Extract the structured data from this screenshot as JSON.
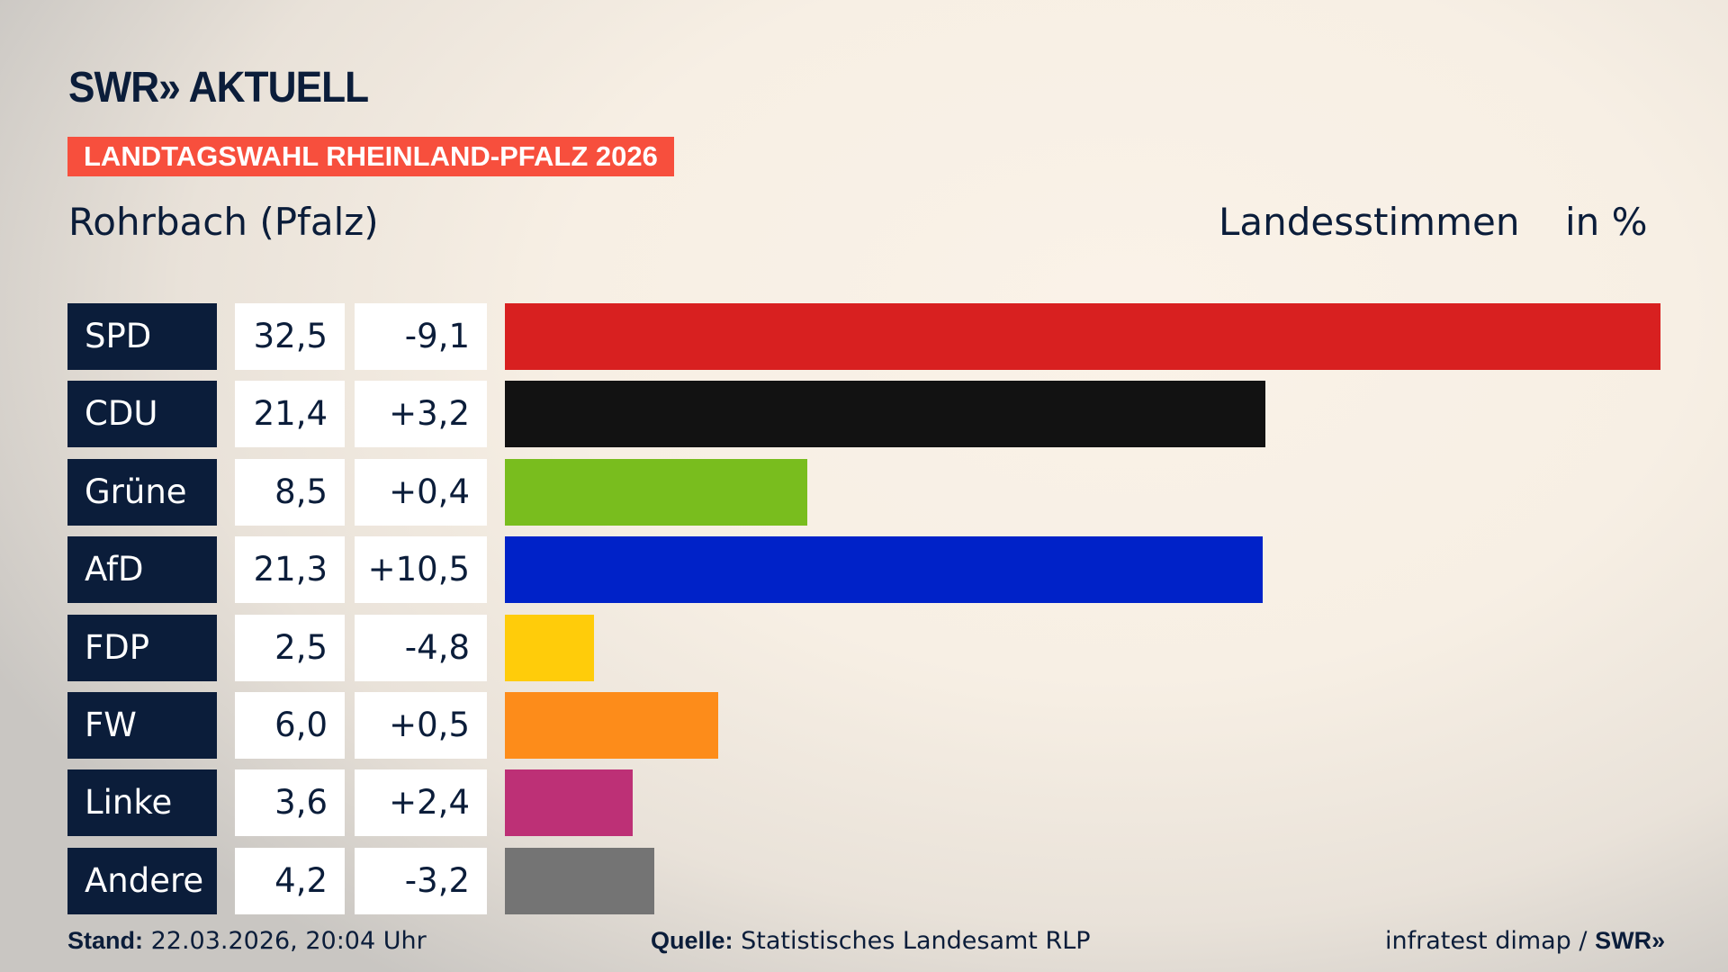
{
  "logo": "SWR» AKTUELL",
  "banner": "LANDTAGSWAHL RHEINLAND-PFALZ 2026",
  "place": "Rohrbach (Pfalz)",
  "header_type": "Landesstimmen",
  "header_unit": "in %",
  "chart_data": {
    "type": "bar",
    "orientation": "horizontal",
    "categories": [
      "SPD",
      "CDU",
      "Grüne",
      "AfD",
      "FDP",
      "FW",
      "Linke",
      "Andere"
    ],
    "values": [
      32.5,
      21.4,
      8.5,
      21.3,
      2.5,
      6.0,
      3.6,
      4.2
    ],
    "value_labels": [
      "32,5",
      "21,4",
      "8,5",
      "21,3",
      "2,5",
      "6,0",
      "3,6",
      "4,2"
    ],
    "change_labels": [
      "-9,1",
      "+3,2",
      "+0,4",
      "+10,5",
      "-4,8",
      "+0,5",
      "+2,4",
      "-3,2"
    ],
    "changes": [
      -9.1,
      3.2,
      0.4,
      10.5,
      -4.8,
      0.5,
      2.4,
      -3.2
    ],
    "colors": [
      "#d82020",
      "#121212",
      "#79bd1e",
      "#0022c8",
      "#ffcc0a",
      "#fd8c1a",
      "#bd3076",
      "#747474"
    ]
  },
  "footer": {
    "stand_label": "Stand:",
    "stand_value": "22.03.2026, 20:04 Uhr",
    "source_label": "Quelle:",
    "source_value": "Statistisches Landesamt RLP",
    "credit": "infratest dimap / ",
    "credit_logo": "SWR»"
  }
}
